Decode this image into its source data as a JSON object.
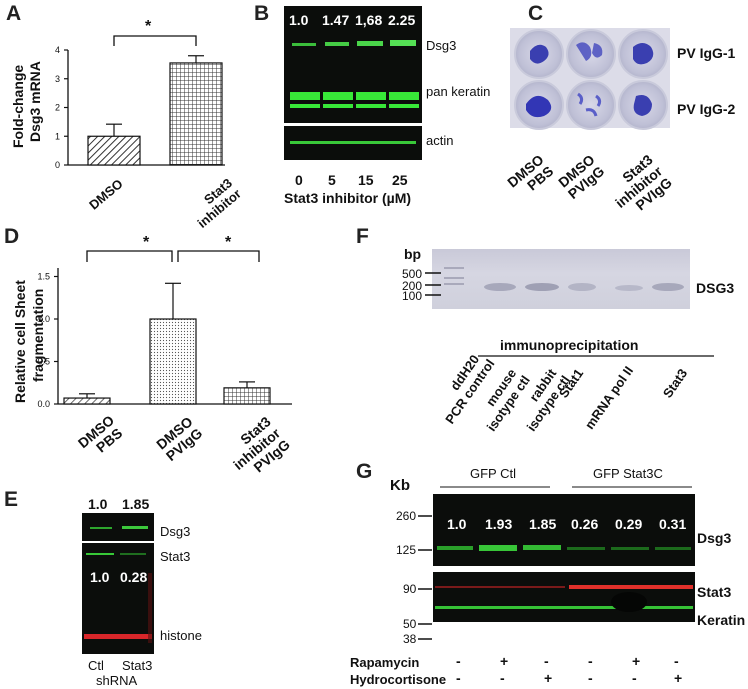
{
  "panels": {
    "A": "A",
    "B": "B",
    "C": "C",
    "D": "D",
    "E": "E",
    "F": "F",
    "G": "G"
  },
  "panel_a": {
    "ylabel_1": "Fold-change",
    "ylabel_2": "Dsg3 mRNA",
    "yticks": [
      "0",
      "1",
      "2",
      "3",
      "4"
    ],
    "xticks": [
      "DMSO",
      "Stat3\ninhibitor"
    ],
    "sig": "*",
    "chart_data": {
      "type": "bar",
      "categories": [
        "DMSO",
        "Stat3 inhibitor"
      ],
      "values": [
        1.0,
        3.55
      ],
      "errors": [
        0.42,
        0.25
      ],
      "ylim": [
        0,
        4
      ],
      "ylabel": "Fold-change Dsg3 mRNA",
      "grid": false
    }
  },
  "panel_b": {
    "fold_values": [
      "1.0",
      "1.47",
      "1,68",
      "2.25"
    ],
    "band_labels": [
      "Dsg3",
      "pan keratin",
      "actin"
    ],
    "xticks": [
      "0",
      "5",
      "15",
      "25"
    ],
    "xlabel": "Stat3 inhibitor (µM)"
  },
  "panel_c": {
    "row_labels": [
      "PV IgG-1",
      "PV IgG-2"
    ],
    "col_labels": [
      [
        "DMSO",
        "PBS"
      ],
      [
        "DMSO",
        "PVIgG"
      ],
      [
        "Stat3",
        "inhibitor",
        "PVIgG"
      ]
    ]
  },
  "panel_d": {
    "ylabel_1": "Relative cell Sheet",
    "ylabel_2": "fragmentation",
    "yticks": [
      "0.0",
      "0.5",
      "1.0",
      "1.5"
    ],
    "xticks": [
      [
        "DMSO",
        "PBS"
      ],
      [
        "DMSO",
        "PVIgG"
      ],
      [
        "Stat3",
        "inhibitor",
        "PVIgG"
      ]
    ],
    "sig": [
      "*",
      "*"
    ],
    "chart_data": {
      "type": "bar",
      "categories": [
        "DMSO PBS",
        "DMSO PVIgG",
        "Stat3 inhibitor PVIgG"
      ],
      "values": [
        0.07,
        1.0,
        0.19
      ],
      "errors": [
        0.05,
        0.42,
        0.07
      ],
      "ylim": [
        0,
        1.6
      ],
      "ylabel": "Relative cell Sheet fragmentation",
      "grid": false
    }
  },
  "panel_e": {
    "top_values": [
      "1.0",
      "1.85"
    ],
    "mid_values": [
      "1.0",
      "0.28"
    ],
    "band_labels": [
      "Dsg3",
      "Stat3",
      "histone"
    ],
    "lanes": [
      "Ctl",
      "Stat3"
    ],
    "footer": "shRNA"
  },
  "panel_f": {
    "bp": "bp",
    "markers": [
      "500",
      "200",
      "100"
    ],
    "band_label": "DSG3",
    "group_label": "immunoprecipitation",
    "lanes": [
      [
        "ddH20",
        "PCR control"
      ],
      [
        "mouse",
        "isotype ctl"
      ],
      [
        "rabbit",
        "isotype ctl"
      ],
      [
        "Stat1"
      ],
      [
        "mRNA pol II"
      ],
      [
        "Stat3"
      ]
    ]
  },
  "panel_g": {
    "kb": "Kb",
    "groups": [
      "GFP Ctl",
      "GFP Stat3C"
    ],
    "markers_top": [
      "260",
      "125"
    ],
    "markers_bottom": [
      "90",
      "50",
      "38"
    ],
    "fold_values": [
      "1.0",
      "1.93",
      "1.85",
      "0.26",
      "0.29",
      "0.31"
    ],
    "band_labels": [
      "Dsg3",
      "Stat3",
      "Keratin"
    ],
    "row_labels": [
      "Rapamycin",
      "Hydrocortisone"
    ],
    "rapamycin": [
      "-",
      "+",
      "-",
      "-",
      "+",
      "-"
    ],
    "hydrocortisone": [
      "-",
      "-",
      "+",
      "-",
      "-",
      "+"
    ]
  }
}
